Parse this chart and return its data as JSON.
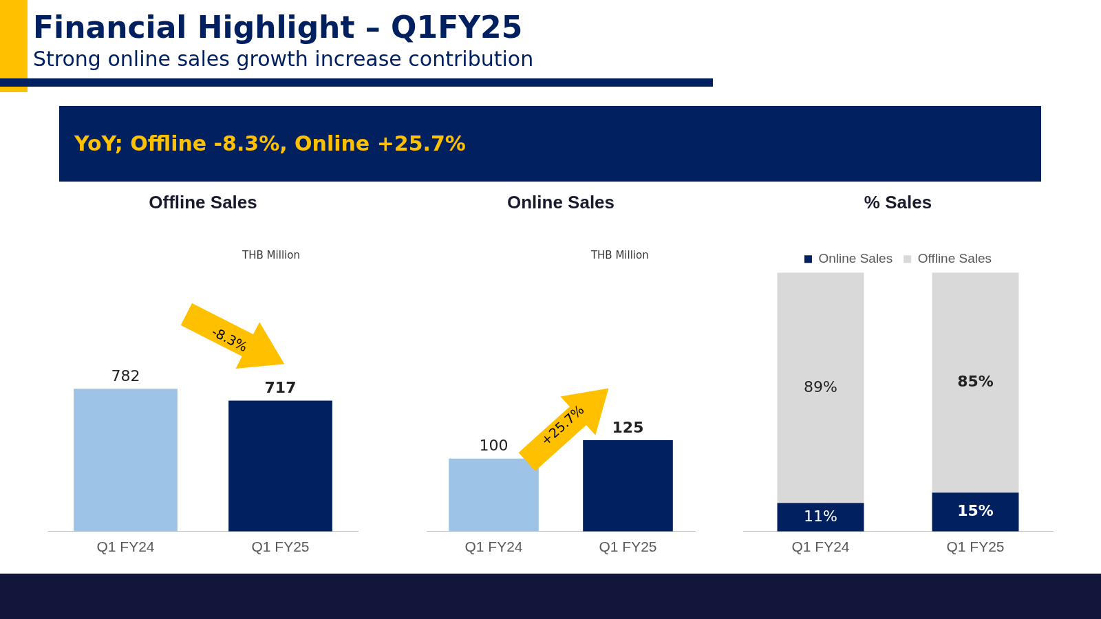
{
  "chart_data": [
    {
      "type": "other",
      "title": "Financial Highlight – Q1FY25",
      "subtitle": "Strong online sales growth increase contribution",
      "annotations": [
        "YoY; Offline -8.3%, Online +25.7%"
      ]
    },
    {
      "type": "bar",
      "title": "Offline Sales",
      "categories": [
        "Q1 FY24",
        "Q1 FY25"
      ],
      "values": [
        782,
        717
      ],
      "colors": [
        "#9dc3e6",
        "#002060"
      ],
      "data_labels": true,
      "tick_labels": "x",
      "grid": false,
      "legend": false,
      "annotations": [
        "THB Million",
        "-8.3%"
      ]
    },
    {
      "type": "bar",
      "title": "Online Sales",
      "categories": [
        "Q1 FY24",
        "Q1 FY25"
      ],
      "values": [
        100,
        125
      ],
      "colors": [
        "#9dc3e6",
        "#002060"
      ],
      "data_labels": true,
      "tick_labels": "x",
      "grid": false,
      "legend": false,
      "annotations": [
        "THB Million",
        "+25.7%"
      ]
    },
    {
      "type": "bar",
      "title": "% Sales",
      "categories": [
        "Q1 FY24",
        "Q1 FY25"
      ],
      "stacked": true,
      "tick_labels": "x",
      "grid": false,
      "legend": "top",
      "series": [
        {
          "name": "Online Sales",
          "color": "#002060",
          "values": [
            11,
            15
          ],
          "value_labels": [
            "11%",
            "15%"
          ]
        },
        {
          "name": "Offline Sales",
          "color": "#d9d9d9",
          "values": [
            89,
            85
          ],
          "value_labels": [
            "89%",
            "85%"
          ]
        }
      ]
    }
  ]
}
